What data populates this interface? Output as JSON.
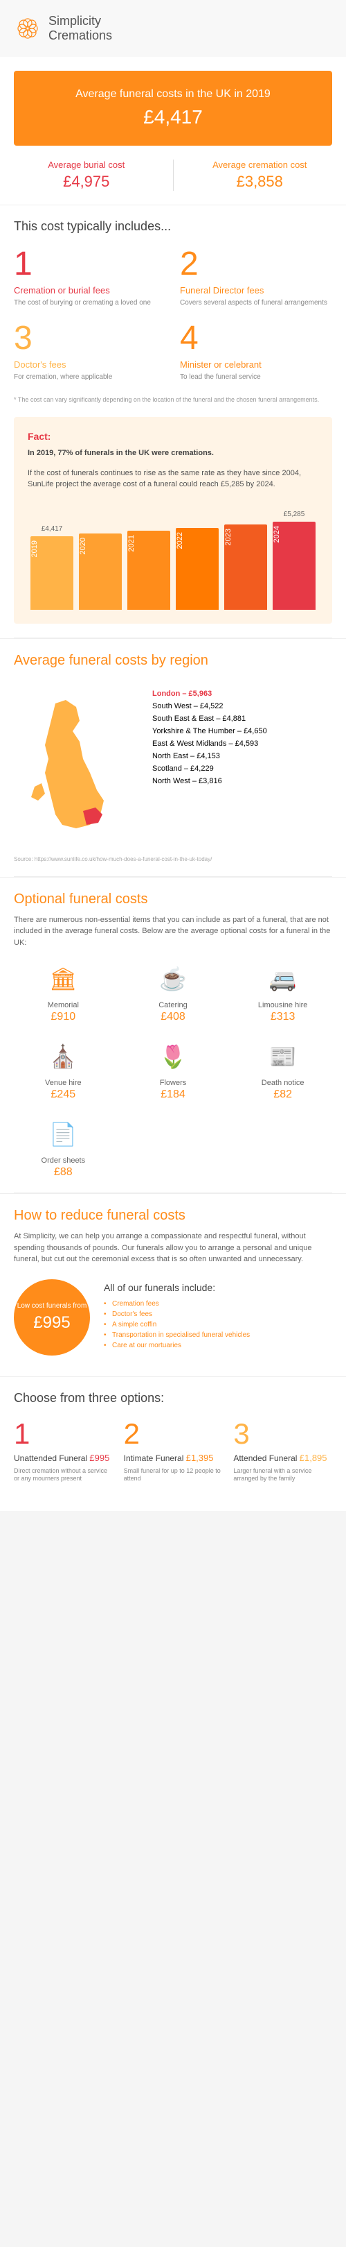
{
  "brand": {
    "name_top": "Simplicity",
    "name_bottom": "Cremations"
  },
  "hero": {
    "title": "Average funeral costs in the UK in 2019",
    "value": "£4,417",
    "burial_label": "Average burial cost",
    "burial_value": "£4,975",
    "cremation_label": "Average cremation cost",
    "cremation_value": "£3,858"
  },
  "includes": {
    "title": "This cost typically includes...",
    "items": [
      {
        "n": "1",
        "label": "Cremation or burial fees",
        "desc": "The cost of burying or cremating a loved one"
      },
      {
        "n": "2",
        "label": "Funeral Director fees",
        "desc": "Covers several aspects of funeral arrangements"
      },
      {
        "n": "3",
        "label": "Doctor's fees",
        "desc": "For cremation, where applicable"
      },
      {
        "n": "4",
        "label": "Minister or celebrant",
        "desc": "To lead the funeral service"
      }
    ],
    "footnote": "* The cost can vary significantly depending on the location of the funeral and the chosen funeral arrangements."
  },
  "fact": {
    "label": "Fact:",
    "line1": "In 2019, 77% of funerals in the UK were cremations.",
    "line2": "If the cost of funerals continues to rise as the same rate as they have since 2004, SunLife project the average cost of a funeral could reach £5,285 by 2024.",
    "chart": {
      "ylim": [
        0,
        5400
      ],
      "bars": [
        {
          "year": "2019",
          "value": 4417,
          "label": "£4,417",
          "color": "#ffb347"
        },
        {
          "year": "2020",
          "value": 4580,
          "label": "",
          "color": "#ffa030"
        },
        {
          "year": "2021",
          "value": 4750,
          "label": "",
          "color": "#ff8c1a"
        },
        {
          "year": "2022",
          "value": 4920,
          "label": "",
          "color": "#ff7a00"
        },
        {
          "year": "2023",
          "value": 5100,
          "label": "",
          "color": "#f25c1f"
        },
        {
          "year": "2024",
          "value": 5285,
          "label": "£5,285",
          "color": "#e63946"
        }
      ]
    }
  },
  "region": {
    "title": "Average funeral costs by region",
    "rows": [
      {
        "text": "London – £5,963",
        "hl": true
      },
      {
        "text": "South West – £4,522",
        "hl": false
      },
      {
        "text": "South East & East – £4,881",
        "hl": false
      },
      {
        "text": "Yorkshire & The Humber – £4,650",
        "hl": false
      },
      {
        "text": "East & West Midlands – £4,593",
        "hl": false
      },
      {
        "text": "North East – £4,153",
        "hl": false
      },
      {
        "text": "Scotland – £4,229",
        "hl": false
      },
      {
        "text": "North West – £3,816",
        "hl": false
      }
    ],
    "source": "Source: https://www.sunlife.co.uk/how-much-does-a-funeral-cost-in-the-uk-today/"
  },
  "optional": {
    "title": "Optional funeral costs",
    "intro": "There are numerous non-essential items that you can include as part of a funeral, that are not included in the average funeral costs. Below are the average optional costs for a funeral in the UK:",
    "items": [
      {
        "icon": "🏛",
        "label": "Memorial",
        "value": "£910"
      },
      {
        "icon": "☕",
        "label": "Catering",
        "value": "£408"
      },
      {
        "icon": "🚐",
        "label": "Limousine hire",
        "value": "£313"
      },
      {
        "icon": "⛪",
        "label": "Venue hire",
        "value": "£245"
      },
      {
        "icon": "🌷",
        "label": "Flowers",
        "value": "£184"
      },
      {
        "icon": "📰",
        "label": "Death notice",
        "value": "£82"
      },
      {
        "icon": "📄",
        "label": "Order sheets",
        "value": "£88"
      }
    ]
  },
  "reduce": {
    "title": "How to reduce funeral costs",
    "intro": "At Simplicity, we can help you arrange a compassionate and respectful funeral, without spending thousands of pounds. Our funerals allow you to arrange a personal and unique funeral, but cut out the ceremonial excess that is so often unwanted and unnecessary.",
    "badge_top": "Low cost funerals from",
    "badge_price": "£995",
    "list_title": "All of our funerals include:",
    "list": [
      "Cremation fees",
      "Doctor's fees",
      "A simple coffin",
      "Transportation in specialised funeral vehicles",
      "Care at our mortuaries"
    ]
  },
  "options": {
    "title": "Choose from three options:",
    "items": [
      {
        "n": "1",
        "name": "Unattended Funeral",
        "price": "£995",
        "desc": "Direct cremation without a service or any mourners present"
      },
      {
        "n": "2",
        "name": "Intimate Funeral",
        "price": "£1,395",
        "desc": "Small funeral for up to 12 people to attend"
      },
      {
        "n": "3",
        "name": "Attended Funeral",
        "price": "£1,895",
        "desc": "Larger funeral with a service arranged by the family"
      }
    ]
  }
}
